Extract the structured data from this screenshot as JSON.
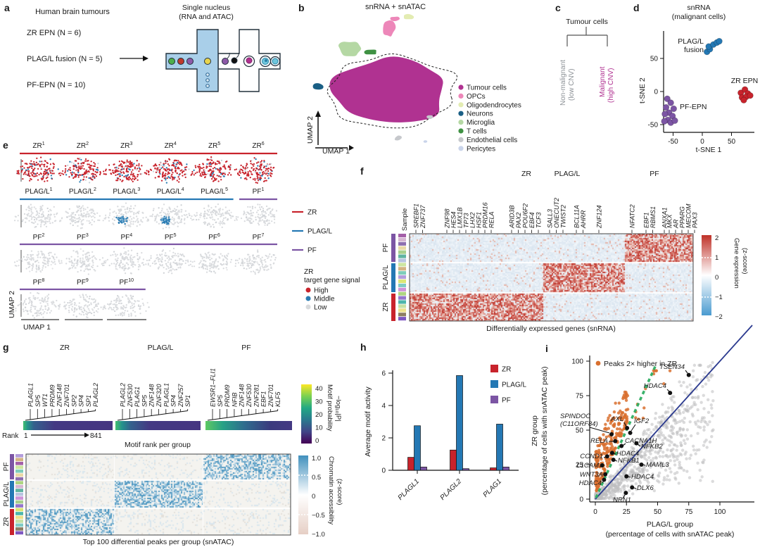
{
  "panel_a": {
    "label": "a",
    "column_title": "Human brain tumours",
    "tumour_groups": [
      "ZR EPN (N = 6)",
      "PLAG/L fusion (N = 5)",
      "PF-EPN (N = 10)"
    ],
    "device_title_line1": "Single nucleus",
    "device_title_line2": "(RNA and ATAC)"
  },
  "panel_b": {
    "label": "b",
    "title": "snRNA + snATAC",
    "x_axis": "UMAP 1",
    "y_axis": "UMAP 2",
    "legend": [
      {
        "name": "Tumour cells",
        "color": "#b03291"
      },
      {
        "name": "OPCs",
        "color": "#ed87b9"
      },
      {
        "name": "Oligodendrocytes",
        "color": "#e3ecb2"
      },
      {
        "name": "Neurons",
        "color": "#1a5f85"
      },
      {
        "name": "Microglia",
        "color": "#b5d8a4"
      },
      {
        "name": "T cells",
        "color": "#3f9143"
      },
      {
        "name": "Endothelial cells",
        "color": "#c6c8cc"
      },
      {
        "name": "Pericytes",
        "color": "#c9d4ea"
      }
    ]
  },
  "panel_c": {
    "label": "c",
    "root": "Tumour cells",
    "branch_left_line1": "Non-malignant",
    "branch_left_line2": "(low CNV)",
    "branch_right_line1": "Malignant",
    "branch_right_line2": "(high CNV)"
  },
  "panel_d": {
    "label": "d",
    "title_line1": "snRNA",
    "title_line2": "(malignant cells)",
    "x_axis": "t-SNE 1",
    "y_axis": "t-SNE 2"
  },
  "panel_e": {
    "label": "e",
    "x_axis": "UMAP 1",
    "y_axis": "UMAP 2",
    "group_colors": {
      "ZR": "#c8232c",
      "PLAG/L": "#2478b4",
      "PF": "#7c55a4"
    },
    "rows": [
      [
        {
          "group": "ZR",
          "n": "1",
          "signal": "high"
        },
        {
          "group": "ZR",
          "n": "2",
          "signal": "high"
        },
        {
          "group": "ZR",
          "n": "3",
          "signal": "high"
        },
        {
          "group": "ZR",
          "n": "4",
          "signal": "high"
        },
        {
          "group": "ZR",
          "n": "5",
          "signal": "high"
        },
        {
          "group": "ZR",
          "n": "6",
          "signal": "high"
        }
      ],
      [
        {
          "group": "PLAG/L",
          "n": "1",
          "signal": "low"
        },
        {
          "group": "PLAG/L",
          "n": "2",
          "signal": "low"
        },
        {
          "group": "PLAG/L",
          "n": "3",
          "signal": "middle"
        },
        {
          "group": "PLAG/L",
          "n": "4",
          "signal": "middle"
        },
        {
          "group": "PLAG/L",
          "n": "5",
          "signal": "low"
        },
        {
          "group": "PF",
          "n": "1",
          "signal": "low"
        }
      ],
      [
        {
          "group": "PF",
          "n": "2",
          "signal": "low"
        },
        {
          "group": "PF",
          "n": "3",
          "signal": "low"
        },
        {
          "group": "PF",
          "n": "4",
          "signal": "low"
        },
        {
          "group": "PF",
          "n": "5",
          "signal": "low"
        },
        {
          "group": "PF",
          "n": "6",
          "signal": "low"
        },
        {
          "group": "PF",
          "n": "7",
          "signal": "low"
        }
      ],
      [
        {
          "group": "PF",
          "n": "8",
          "signal": "low"
        },
        {
          "group": "PF",
          "n": "9",
          "signal": "low"
        },
        {
          "group": "PF",
          "n": "10",
          "signal": "low"
        }
      ]
    ],
    "line_legend": [
      {
        "label": "ZR",
        "color": "#c8232c"
      },
      {
        "label": "PLAG/L",
        "color": "#2478b4"
      },
      {
        "label": "PF",
        "color": "#7c55a4"
      }
    ],
    "signal_legend_title_line1": "ZR",
    "signal_legend_title_line2": "target gene signal",
    "signal_legend": [
      {
        "label": "High",
        "color": "#c8232c"
      },
      {
        "label": "Middle",
        "color": "#2a7cb3"
      },
      {
        "label": "Low",
        "color": "#d8dadc"
      }
    ]
  },
  "panel_f": {
    "label": "f",
    "group_headers": [
      "ZR",
      "PLAG/L",
      "PF"
    ],
    "sample_label": "Sample",
    "row_groups": [
      "PF",
      "PLAG/L",
      "ZR"
    ],
    "gene_clusters": [
      [
        "SREBF1",
        "ZNF737"
      ],
      [
        "ZNF98",
        "HES4",
        "LMX1B",
        "TP73",
        "LHX2",
        "HSF1",
        "PRDM16",
        "RELA"
      ],
      [
        "ARID3B",
        "PAX2",
        "POU6F2",
        "EBF4",
        "TCF3"
      ],
      [
        "SALL3",
        "ONECUT2",
        "TWIST2"
      ],
      [
        "BCL11A",
        "AHRR"
      ],
      [
        "ZNF124"
      ],
      [
        "NFATC2"
      ],
      [
        "EBF1",
        "RBMS1"
      ],
      [
        "ANXA1"
      ],
      [
        "MKX",
        "AR",
        "PPARG",
        "MECOM",
        "PAX3"
      ]
    ],
    "colorbar": {
      "title_line1": "Gene expression",
      "title_line2": "(z-score)",
      "ticks": [
        "2",
        "1",
        "0",
        "−1",
        "−2"
      ]
    },
    "caption": "Differentially expressed genes (snRNA)"
  },
  "panel_g": {
    "label": "g",
    "groups": [
      {
        "header": "ZR",
        "motifs": [
          {
            "name": "PLAGL1",
            "highlight": true
          },
          {
            "name": "SP5"
          },
          {
            "name": "WT1"
          },
          {
            "name": "PRDM9"
          },
          {
            "name": "ZNF148"
          },
          {
            "name": "ZNF701"
          },
          {
            "name": "SP2"
          },
          {
            "name": "SP4"
          },
          {
            "name": "SP1"
          },
          {
            "name": "PLAGL2",
            "highlight": true
          }
        ]
      },
      {
        "header": "PLAG/L",
        "motifs": [
          {
            "name": "PLAGL2",
            "highlight": true
          },
          {
            "name": "ZNF530"
          },
          {
            "name": "PLAG1",
            "highlight": true
          },
          {
            "name": "SP5"
          },
          {
            "name": "ZNF148"
          },
          {
            "name": "ZNF320"
          },
          {
            "name": "PLAGL1",
            "highlight": true
          },
          {
            "name": "SP4"
          },
          {
            "name": "ZNF257"
          },
          {
            "name": "SP1"
          }
        ]
      },
      {
        "header": "PF",
        "motifs": [
          {
            "name": "EWSR1–FLI1"
          },
          {
            "name": "SP5"
          },
          {
            "name": "PRDM9"
          },
          {
            "name": "NFIB"
          },
          {
            "name": "ZNF148"
          },
          {
            "name": "ZNF530"
          },
          {
            "name": "ZNF281"
          },
          {
            "name": "EBF1"
          },
          {
            "name": "ZNF701"
          },
          {
            "name": "KLF5"
          }
        ]
      }
    ],
    "rank_label": "Rank",
    "rank_start": "1",
    "rank_end": "841",
    "strip_caption": "Motif rank per group",
    "prob_colorbar": {
      "title_line1": "Motif probability",
      "title_line2": "−log₁₀|P|",
      "ticks": [
        "40",
        "30",
        "20",
        "10",
        "0"
      ]
    },
    "heat_row_groups": [
      "PF",
      "PLAG/L",
      "ZR"
    ],
    "acc_colorbar": {
      "title_line1": "Chromatin accessibility",
      "title_line2": "(z-score)",
      "ticks": [
        "1.0",
        "0.5",
        "0",
        "−0.5",
        "−1.0"
      ]
    },
    "caption": "Top 100 differential peaks per group (snATAC)"
  },
  "panel_h": {
    "label": "h",
    "ylabel": "Average motif activity"
  },
  "panel_i": {
    "label": "i",
    "legend": "Peaks 2× higher in ZR",
    "legend_color": "#d9702f",
    "xlabel_line1": "PLAG/L group",
    "xlabel_line2": "(percentage of cells with snATAC peak)",
    "ylabel_line1": "ZR group",
    "ylabel_line2": "(percentage of cells with snATAC peak)"
  },
  "chart_data": [
    {
      "panel": "d",
      "type": "scatter",
      "title": "snRNA (malignant cells)",
      "xlabel": "t-SNE 1",
      "ylabel": "t-SNE 2",
      "x_ticks": [
        -50,
        0,
        50
      ],
      "y_ticks": [
        50,
        0,
        -50
      ],
      "series": [
        {
          "name": "PLAG/L fusion",
          "color": "#2478b4",
          "points": [
            [
              8,
              60
            ],
            [
              13,
              64
            ],
            [
              11,
              68
            ],
            [
              19,
              71
            ],
            [
              25,
              74
            ],
            [
              29,
              76
            ]
          ]
        },
        {
          "name": "ZR EPN",
          "color": "#c8232c",
          "points": [
            [
              66,
              -2
            ],
            [
              73,
              3
            ],
            [
              78,
              -3
            ],
            [
              68,
              -9
            ],
            [
              75,
              -8
            ],
            [
              82,
              -6
            ],
            [
              71,
              -13
            ]
          ]
        },
        {
          "name": "PF-EPN",
          "color": "#7c55a4",
          "points": [
            [
              -60,
              -11
            ],
            [
              -54,
              -17
            ],
            [
              -62,
              -24
            ],
            [
              -49,
              -26
            ],
            [
              -57,
              -32
            ],
            [
              -64,
              -34
            ],
            [
              -51,
              -37
            ],
            [
              -59,
              -43
            ],
            [
              -54,
              -47
            ],
            [
              -47,
              -44
            ],
            [
              -65,
              -45
            ]
          ]
        }
      ]
    },
    {
      "panel": "h",
      "type": "bar",
      "categories": [
        "PLAGL1",
        "PLAGL2",
        "PLAG1"
      ],
      "series": [
        {
          "name": "ZR",
          "color": "#c8232c",
          "values": [
            0.8,
            1.25,
            0.15
          ]
        },
        {
          "name": "PLAG/L",
          "color": "#2478b4",
          "values": [
            2.75,
            5.85,
            2.85
          ]
        },
        {
          "name": "PF",
          "color": "#7c55a4",
          "values": [
            0.2,
            0.1,
            0.2
          ]
        }
      ],
      "ylabel": "Average motif activity",
      "ylim": [
        0,
        6
      ],
      "yticks": [
        0,
        2,
        4,
        6
      ],
      "legend_position": "top-right"
    },
    {
      "panel": "i",
      "type": "scatter",
      "xlabel": "PLAG/L group (percentage of cells with snATAC peak)",
      "ylabel": "ZR group (percentage of cells with snATAC peak)",
      "xlim": [
        0,
        100
      ],
      "ylim": [
        0,
        100
      ],
      "x_ticks": [
        0,
        25,
        50,
        75,
        100
      ],
      "y_ticks": [
        0,
        25,
        50,
        75,
        100
      ],
      "point_classes": [
        {
          "name": "Peaks 2× higher in ZR",
          "color": "#d9702f"
        },
        {
          "name": "other peaks",
          "color": "#b9b9bb"
        }
      ],
      "reference_lines": [
        {
          "name": "identity (y = x)",
          "color": "#2b3a8f",
          "style": "solid"
        },
        {
          "name": "y = 2x",
          "color": "#2fae63",
          "style": "dashed"
        }
      ],
      "labeled_points": [
        {
          "gene": "TSEN34",
          "x": 75,
          "y": 90
        },
        {
          "gene": "HDAC4",
          "x": 60,
          "y": 77
        },
        {
          "gene": "SPINDOC (C11ORF84)",
          "x": 13,
          "y": 47
        },
        {
          "gene": "AXL",
          "x": 25.5,
          "y": 51.5
        },
        {
          "gene": "IGF2",
          "x": 28,
          "y": 48
        },
        {
          "gene": "RELA",
          "x": 16,
          "y": 42
        },
        {
          "gene": "CACNA1H",
          "x": 21,
          "y": 38.5
        },
        {
          "gene": "NFKB2",
          "x": 33,
          "y": 40.5
        },
        {
          "gene": "HDAC4",
          "x": 13.5,
          "y": 33.5
        },
        {
          "gene": "NFKB1",
          "x": 14.5,
          "y": 28.5
        },
        {
          "gene": "CCND1",
          "x": 9.5,
          "y": 31
        },
        {
          "gene": "L1CAM",
          "x": 5.5,
          "y": 24.5
        },
        {
          "gene": "WNT3A",
          "x": 8,
          "y": 18
        },
        {
          "gene": "HDAC4",
          "x": 7,
          "y": 14
        },
        {
          "gene": "MAML3",
          "x": 37,
          "y": 25
        },
        {
          "gene": "HDAC4",
          "x": 25,
          "y": 16.5
        },
        {
          "gene": "DLX6",
          "x": 29.5,
          "y": 8.5
        },
        {
          "gene": "NRN1",
          "x": 24.5,
          "y": 4.5
        }
      ]
    }
  ]
}
